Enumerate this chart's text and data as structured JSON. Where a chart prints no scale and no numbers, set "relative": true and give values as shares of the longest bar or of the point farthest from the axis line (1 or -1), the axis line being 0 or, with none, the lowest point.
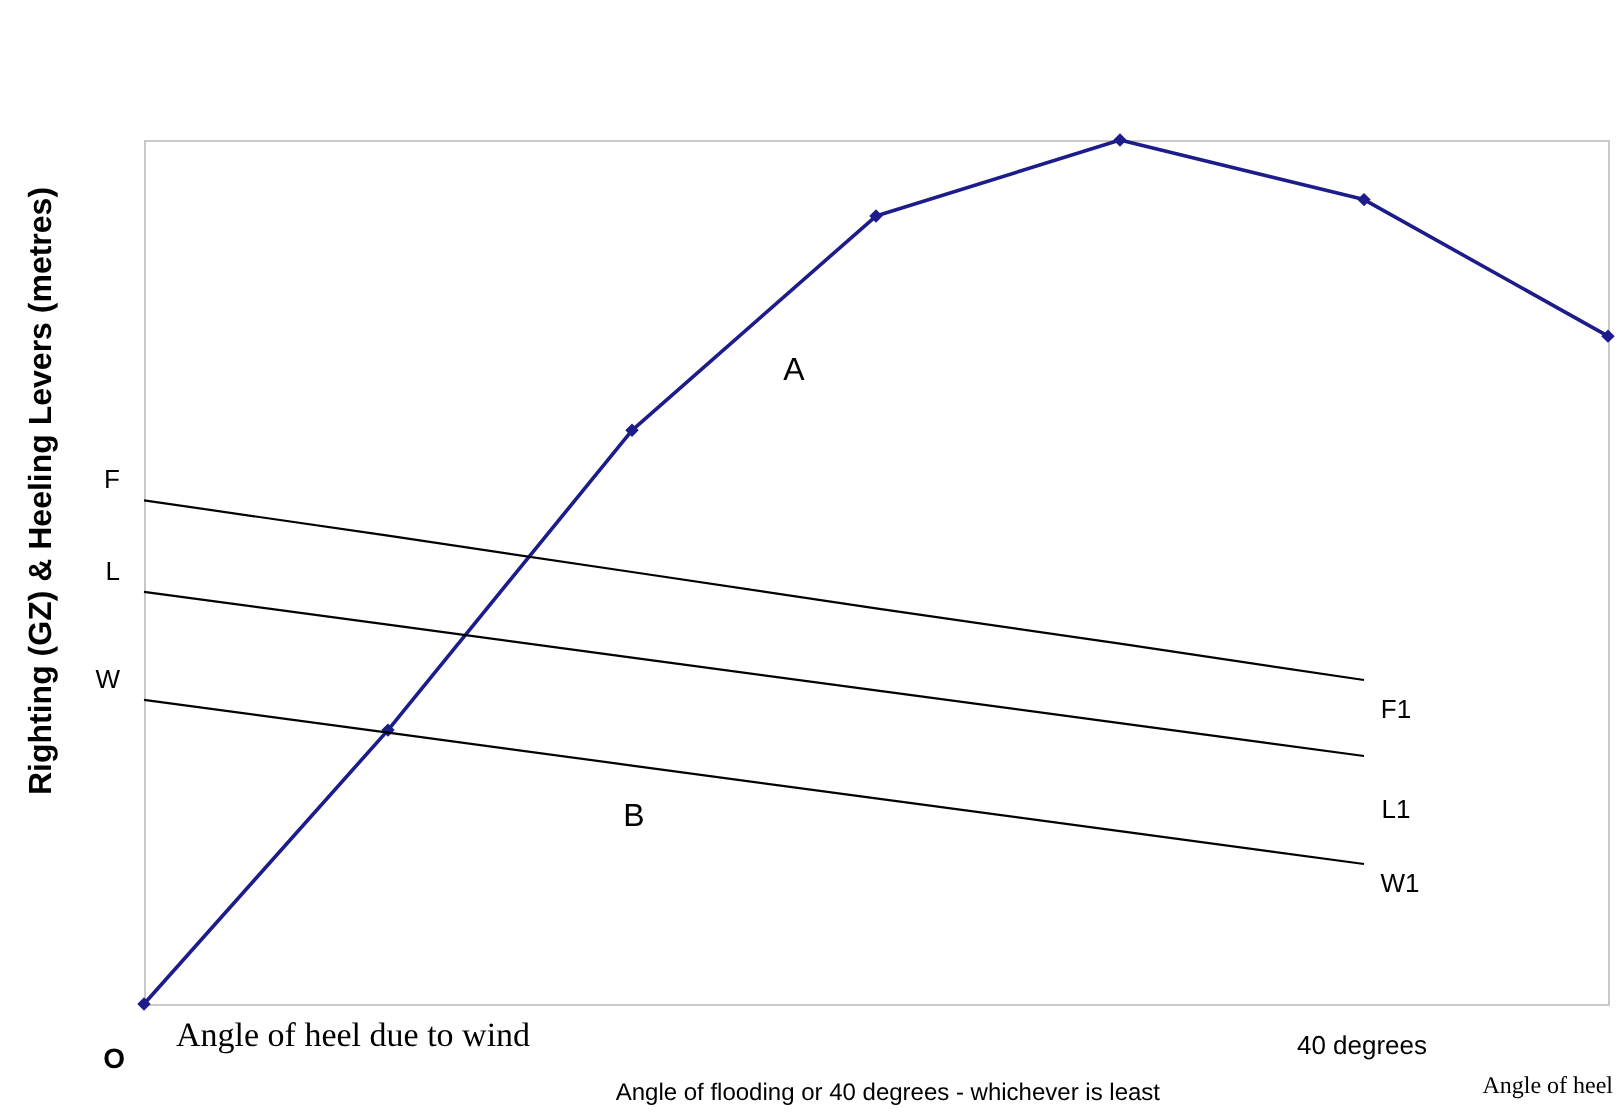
{
  "chart_data": {
    "type": "line",
    "xlabel": "Angle of heel",
    "ylabel": "Righting (GZ) & Heeling Levers (metres)",
    "relative": true,
    "marker": "diamond",
    "categories": [
      null,
      null,
      null,
      null,
      null,
      null,
      null
    ],
    "series": [
      {
        "color": "#1c1c8a",
        "values": [
          0,
          0.317,
          0.664,
          0.912,
          1,
          0.931,
          0.773
        ]
      },
      {
        "name": "F",
        "color": "#000000",
        "marker": "none",
        "values": [
          0.583,
          0.542,
          0.5,
          0.458,
          0.417,
          0.375,
          null
        ]
      },
      {
        "name": "L",
        "color": "#000000",
        "marker": "none",
        "values": [
          0.477,
          0.439,
          0.401,
          0.363,
          0.325,
          0.287,
          null
        ]
      },
      {
        "name": "W",
        "color": "#000000",
        "marker": "none",
        "values": [
          0.352,
          0.314,
          0.276,
          0.238,
          0.2,
          0.162,
          null
        ]
      }
    ],
    "annotations": [
      "O",
      "A",
      "B",
      "F1",
      "L1",
      "W1",
      "Angle of heel due to wind",
      "Angle of flooding or 40 degrees - whichever is least",
      "40 degrees"
    ]
  }
}
